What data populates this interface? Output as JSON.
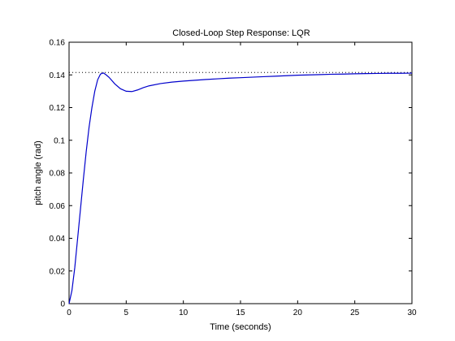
{
  "chart_data": {
    "type": "line",
    "title": "Closed-Loop Step Response: LQR",
    "xlabel": "Time (seconds)",
    "ylabel": "pitch angle (rad)",
    "xlim": [
      0,
      30
    ],
    "ylim": [
      0,
      0.16
    ],
    "x_ticks": [
      "0",
      "5",
      "10",
      "15",
      "20",
      "25",
      "30"
    ],
    "y_ticks": [
      "0",
      "0.02",
      "0.04",
      "0.06",
      "0.08",
      "0.1",
      "0.12",
      "0.14",
      "0.16"
    ],
    "grid": false,
    "legend": "none",
    "reference_line": {
      "y": 0.1415,
      "style": "dotted",
      "color": "#000000"
    },
    "series": [
      {
        "color": "#0000cc",
        "x": [
          0,
          0.25,
          0.5,
          0.75,
          1.0,
          1.25,
          1.5,
          1.75,
          2.0,
          2.25,
          2.5,
          2.75,
          3.0,
          3.25,
          3.5,
          3.75,
          4.0,
          4.5,
          5.0,
          5.5,
          6.0,
          6.5,
          7.0,
          8.0,
          9.0,
          10.0,
          11.0,
          12.0,
          13.0,
          14.0,
          15.0,
          16.0,
          17.0,
          18.0,
          19.0,
          20.0,
          21.0,
          22.0,
          23.0,
          24.0,
          25.0,
          26.0,
          27.0,
          28.0,
          29.0,
          30.0
        ],
        "y": [
          0,
          0.008,
          0.022,
          0.04,
          0.058,
          0.076,
          0.093,
          0.108,
          0.12,
          0.13,
          0.137,
          0.1405,
          0.1412,
          0.14,
          0.1385,
          0.1365,
          0.1345,
          0.1315,
          0.13,
          0.1298,
          0.1308,
          0.1322,
          0.1333,
          0.1347,
          0.1356,
          0.1362,
          0.1367,
          0.1372,
          0.1376,
          0.138,
          0.1383,
          0.1386,
          0.1389,
          0.1392,
          0.1395,
          0.1398,
          0.14,
          0.1402,
          0.1404,
          0.1405,
          0.1407,
          0.1408,
          0.1409,
          0.141,
          0.141,
          0.1411
        ]
      }
    ]
  }
}
